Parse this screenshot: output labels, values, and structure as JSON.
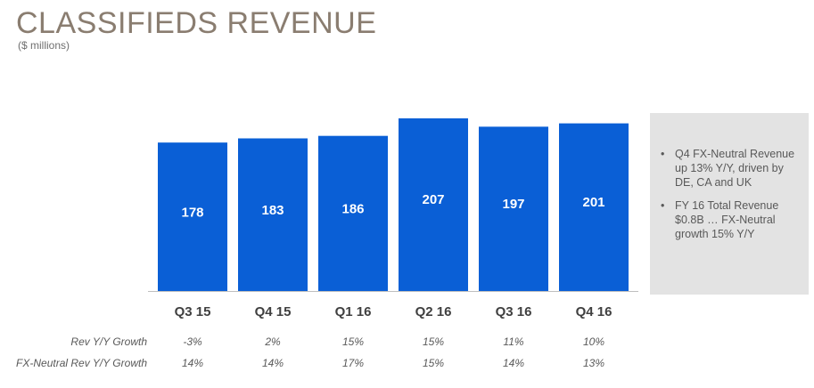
{
  "header": {
    "title": "CLASSIFIEDS REVENUE",
    "subtitle": "($ millions)"
  },
  "chart_data": {
    "type": "bar",
    "title": "CLASSIFIEDS REVENUE",
    "subtitle": "($ millions)",
    "categories": [
      "Q3 15",
      "Q4 15",
      "Q1 16",
      "Q2 16",
      "Q3 16",
      "Q4 16"
    ],
    "values": [
      178,
      183,
      186,
      207,
      197,
      201
    ],
    "value_labels": [
      "178",
      "183",
      "186",
      "207",
      "197",
      "201"
    ],
    "bar_color": "#0a5fd6",
    "ylim": [
      0,
      207
    ],
    "grid": false,
    "legend": "none"
  },
  "growth_rows": [
    {
      "label": "Rev Y/Y Growth",
      "values": [
        "-3%",
        "2%",
        "15%",
        "15%",
        "11%",
        "10%"
      ]
    },
    {
      "label": "FX-Neutral Rev Y/Y Growth",
      "values": [
        "14%",
        "14%",
        "17%",
        "15%",
        "14%",
        "13%"
      ]
    }
  ],
  "callout": {
    "bullets": [
      "Q4 FX-Neutral Revenue up 13% Y/Y, driven by DE, CA and UK",
      "FY 16 Total Revenue $0.8B … FX-Neutral growth 15% Y/Y"
    ]
  },
  "colors": {
    "title": "#8a7d70",
    "bar": "#0a5fd6",
    "callout_bg": "#e3e3e3",
    "axis": "#bfbfbf"
  }
}
